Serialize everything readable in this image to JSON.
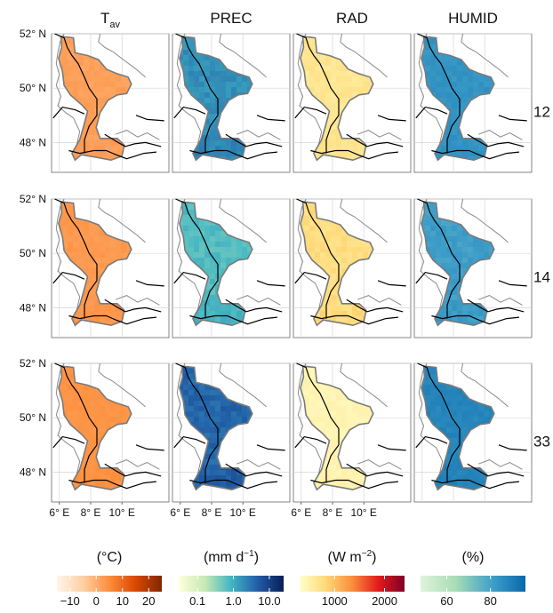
{
  "chart_data": {
    "type": "heatmap",
    "layout": "4 columns x 3 rows of small-multiple maps",
    "columns": [
      {
        "title_main": "T",
        "title_sub": "av",
        "unit_label": "(°C)",
        "unit_sup": "",
        "colorbar_ticks": [
          -10,
          0,
          10,
          20
        ],
        "colorbar_tick_labels": [
          "−10",
          "0",
          "10",
          "20"
        ],
        "colorbar_range": [
          -15,
          25
        ],
        "colorbar_scale": "linear",
        "colorbar_colors": [
          "#fff5eb",
          "#fdd0a2",
          "#fd8d3c",
          "#d94801",
          "#7f2704"
        ]
      },
      {
        "title_main": "PREC",
        "title_sub": "",
        "unit_label": "(mm d",
        "unit_sup": "−1",
        "unit_close": ")",
        "colorbar_ticks": [
          0.1,
          1.0,
          10.0
        ],
        "colorbar_tick_labels": [
          "0.1",
          "1.0",
          "10.0"
        ],
        "colorbar_range": [
          0.03,
          25
        ],
        "colorbar_scale": "log",
        "colorbar_colors": [
          "#ffffd9",
          "#c7e9b4",
          "#41b6c4",
          "#225ea8",
          "#081d58"
        ]
      },
      {
        "title_main": "RAD",
        "title_sub": "",
        "unit_label": "(W m",
        "unit_sup": "−2",
        "unit_close": ")",
        "colorbar_ticks": [
          1000,
          2000
        ],
        "colorbar_tick_labels": [
          "1000",
          "2000"
        ],
        "colorbar_range": [
          300,
          2400
        ],
        "colorbar_scale": "linear",
        "colorbar_colors": [
          "#ffffcc",
          "#fed976",
          "#fd8d3c",
          "#e31a1c",
          "#800026"
        ]
      },
      {
        "title_main": "HUMID",
        "title_sub": "",
        "unit_label": "(%)",
        "unit_sup": "",
        "colorbar_ticks": [
          60,
          80
        ],
        "colorbar_tick_labels": [
          "60",
          "80"
        ],
        "colorbar_range": [
          48,
          96
        ],
        "colorbar_scale": "linear",
        "colorbar_colors": [
          "#e0f3db",
          "#a8ddb5",
          "#43a2ca",
          "#0868ac"
        ]
      }
    ],
    "rows": [
      {
        "label": "12",
        "values": [
          {
            "mean": 2,
            "spread": 1.5
          },
          {
            "mean": 1.8,
            "spread": 0.4
          },
          {
            "mean": 650,
            "spread": 120
          },
          {
            "mean": 84,
            "spread": 3
          }
        ]
      },
      {
        "label": "14",
        "values": [
          {
            "mean": 3,
            "spread": 1.5
          },
          {
            "mean": 0.7,
            "spread": 0.4
          },
          {
            "mean": 750,
            "spread": 150
          },
          {
            "mean": 81,
            "spread": 4
          }
        ]
      },
      {
        "label": "33",
        "values": [
          {
            "mean": 4,
            "spread": 1.2
          },
          {
            "mean": 4.0,
            "spread": 0.5
          },
          {
            "mean": 450,
            "spread": 80
          },
          {
            "mean": 88,
            "spread": 3
          }
        ]
      }
    ],
    "y_ticks": [
      52,
      50,
      48
    ],
    "y_tick_labels": [
      "52° N",
      "50° N",
      "48° N"
    ],
    "x_ticks": [
      6,
      8,
      10
    ],
    "x_tick_labels": [
      "6° E",
      "8° E",
      "10° E"
    ],
    "xlim": [
      5.5,
      13.0
    ],
    "ylim": [
      46.9,
      52.0
    ],
    "grid": true
  }
}
